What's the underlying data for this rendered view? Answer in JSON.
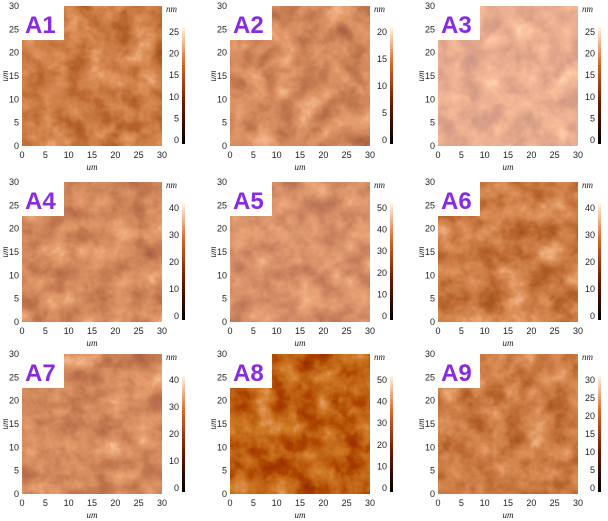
{
  "panels": [
    {
      "label": "A1",
      "x_axis_label": "um",
      "y_axis_label": "um",
      "unit": "nm",
      "xticks": [
        0,
        5,
        10,
        15,
        20,
        25,
        30
      ],
      "yticks": [
        0,
        5,
        10,
        15,
        20,
        25,
        30
      ],
      "colorbar_ticks": [
        25,
        20,
        15,
        10,
        5,
        0
      ]
    },
    {
      "label": "A2",
      "x_axis_label": "um",
      "y_axis_label": "um",
      "unit": "nm",
      "xticks": [
        0,
        5,
        10,
        15,
        20,
        25,
        30
      ],
      "yticks": [
        0,
        5,
        10,
        15,
        20,
        25,
        30
      ],
      "colorbar_ticks": [
        20,
        15,
        10,
        5,
        0
      ]
    },
    {
      "label": "A3",
      "x_axis_label": "um",
      "y_axis_label": "um",
      "unit": "nm",
      "xticks": [
        0,
        5,
        10,
        15,
        20,
        25,
        30
      ],
      "yticks": [
        0,
        5,
        10,
        15,
        20,
        25,
        30
      ],
      "colorbar_ticks": [
        25,
        20,
        15,
        10,
        5,
        0
      ]
    },
    {
      "label": "A4",
      "x_axis_label": "um",
      "y_axis_label": "um",
      "unit": "nm",
      "xticks": [
        0,
        5,
        10,
        15,
        20,
        25,
        30
      ],
      "yticks": [
        0,
        5,
        10,
        15,
        20,
        25,
        30
      ],
      "colorbar_ticks": [
        40,
        30,
        20,
        10,
        0
      ]
    },
    {
      "label": "A5",
      "x_axis_label": "um",
      "y_axis_label": "um",
      "unit": "nm",
      "xticks": [
        0,
        5,
        10,
        15,
        20,
        25,
        30
      ],
      "yticks": [
        0,
        5,
        10,
        15,
        20,
        25,
        30
      ],
      "colorbar_ticks": [
        50,
        40,
        30,
        20,
        10,
        0
      ]
    },
    {
      "label": "A6",
      "x_axis_label": "um",
      "y_axis_label": "um",
      "unit": "nm",
      "xticks": [
        0,
        5,
        10,
        15,
        20,
        25,
        30
      ],
      "yticks": [
        0,
        5,
        10,
        15,
        20,
        25,
        30
      ],
      "colorbar_ticks": [
        40,
        30,
        20,
        10,
        0
      ]
    },
    {
      "label": "A7",
      "x_axis_label": "um",
      "y_axis_label": "um",
      "unit": "nm",
      "xticks": [
        0,
        5,
        10,
        15,
        20,
        25,
        30
      ],
      "yticks": [
        0,
        5,
        10,
        15,
        20,
        25,
        30
      ],
      "colorbar_ticks": [
        40,
        30,
        20,
        10,
        0
      ]
    },
    {
      "label": "A8",
      "x_axis_label": "um",
      "y_axis_label": "um",
      "unit": "nm",
      "xticks": [
        0,
        5,
        10,
        15,
        20,
        25,
        30
      ],
      "yticks": [
        0,
        5,
        10,
        15,
        20,
        25,
        30
      ],
      "colorbar_ticks": [
        50,
        40,
        30,
        20,
        10,
        0
      ]
    },
    {
      "label": "A9",
      "x_axis_label": "um",
      "y_axis_label": "um",
      "unit": "nm",
      "xticks": [
        0,
        5,
        10,
        15,
        20,
        25,
        30
      ],
      "yticks": [
        0,
        5,
        10,
        15,
        20,
        25,
        30
      ],
      "colorbar_ticks": [
        30,
        25,
        20,
        15,
        10,
        5,
        0
      ]
    }
  ]
}
